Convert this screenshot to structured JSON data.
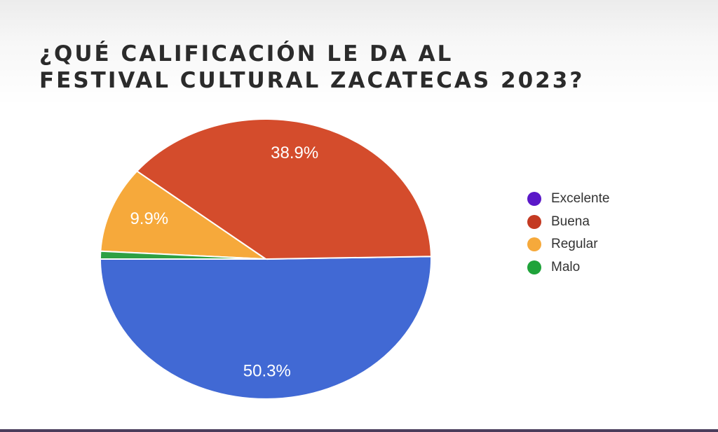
{
  "title_lines": [
    "¿QUÉ CALIFICACIÓN LE DA AL",
    "FESTIVAL CULTURAL ZACATECAS 2023?"
  ],
  "chart_data": {
    "type": "pie",
    "title": "¿QUÉ CALIFICACIÓN LE DA AL FESTIVAL CULTURAL ZACATECAS 2023?",
    "categories": [
      "Excelente",
      "Buena",
      "Regular",
      "Malo"
    ],
    "values": [
      50.3,
      38.9,
      9.9,
      0.9
    ],
    "data_labels": [
      "50.3%",
      "38.9%",
      "9.9%",
      ""
    ],
    "colors": [
      "#4169d4",
      "#d44c2c",
      "#f6a93b",
      "#2ea043"
    ],
    "legend_colors": [
      "#5a18c8",
      "#c43a22",
      "#f6a93b",
      "#1fa33a"
    ],
    "legend_position": "right"
  }
}
